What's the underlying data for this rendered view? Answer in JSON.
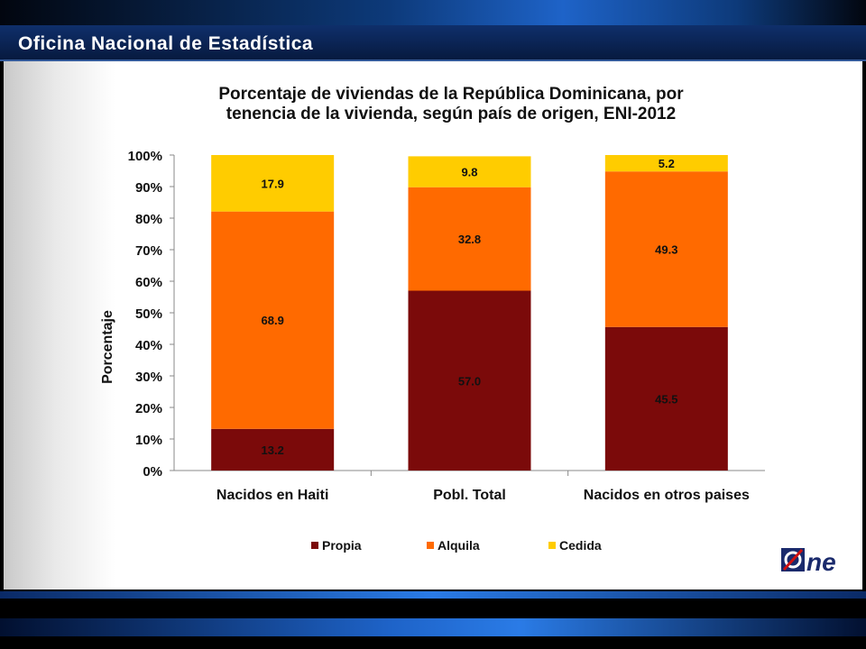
{
  "header": {
    "org_title": "Oficina Nacional de Estadística"
  },
  "chart_data": {
    "type": "bar",
    "stacked": true,
    "title_line1": "Porcentaje de  viviendas de la República Dominicana, por",
    "title_line2": "tenencia de la vivienda, según país de origen, ENI-2012",
    "ylabel": "Porcentaje",
    "xlabel": "",
    "ylim": [
      0,
      100
    ],
    "yticks": [
      "0%",
      "10%",
      "20%",
      "30%",
      "40%",
      "50%",
      "60%",
      "70%",
      "80%",
      "90%",
      "100%"
    ],
    "categories": [
      "Nacidos en Haiti",
      "Pobl. Total",
      "Nacidos en otros paises"
    ],
    "series": [
      {
        "name": "Propia",
        "color": "#7b0a0a",
        "values": [
          13.2,
          57.0,
          45.5
        ],
        "labels": [
          "13.2",
          "57.0",
          "45.5"
        ]
      },
      {
        "name": "Alquila",
        "color": "#ff6a00",
        "values": [
          68.9,
          32.8,
          49.3
        ],
        "labels": [
          "68.9",
          "32.8",
          "49.3"
        ]
      },
      {
        "name": "Cedida",
        "color": "#ffcc00",
        "values": [
          17.9,
          9.8,
          5.2
        ],
        "labels": [
          "17.9",
          "9.8",
          "5.2"
        ]
      }
    ],
    "legend_position": "bottom",
    "grid": false
  },
  "logo": {
    "text": "Øne",
    "colors": [
      "#1a2a6c",
      "#d01010"
    ]
  }
}
